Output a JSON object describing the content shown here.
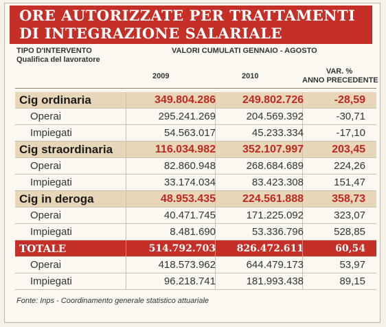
{
  "header": {
    "title_lines": [
      "ORE AUTORIZZATE PER TRATTAMENTI",
      "DI INTEGRAZIONE SALARIALE"
    ]
  },
  "table": {
    "col_header": {
      "type_label": "TIPO D'INTERVENTO",
      "qualifica_label": "Qualifica del lavoratore",
      "period": "VALORI CUMULATI GENNAIO - AGOSTO",
      "years": [
        "2009",
        "2010"
      ],
      "var_lines": [
        "VAR. %",
        "ANNO PRECEDENTE"
      ]
    },
    "groups": [
      {
        "label": "Cig ordinaria",
        "values": [
          "349.804.286",
          "249.802.726",
          "-28,59"
        ],
        "rows": [
          {
            "label": "Operai",
            "values": [
              "295.241.269",
              "204.569.392",
              "-30,71"
            ]
          },
          {
            "label": "Impiegati",
            "values": [
              "54.563.017",
              "45.233.334",
              "-17,10"
            ]
          }
        ]
      },
      {
        "label": "Cig straordinaria",
        "values": [
          "116.034.982",
          "352.107.997",
          "203,45"
        ],
        "rows": [
          {
            "label": "Operai",
            "values": [
              "82.860.948",
              "268.684.689",
              "224,26"
            ]
          },
          {
            "label": "Impiegati",
            "values": [
              "33.174.034",
              "83.423.308",
              "151,47"
            ]
          }
        ]
      },
      {
        "label": "Cig in deroga",
        "values": [
          "48.953.435",
          "224.561.888",
          "358,73"
        ],
        "rows": [
          {
            "label": "Operai",
            "values": [
              "40.471.745",
              "171.225.092",
              "323,07"
            ]
          },
          {
            "label": "Impiegati",
            "values": [
              "8.481.690",
              "53.336.796",
              "528,85"
            ]
          }
        ]
      }
    ],
    "total": {
      "label": "TOTALE",
      "values": [
        "514.792.703",
        "826.472.611",
        "60,54"
      ],
      "rows": [
        {
          "label": "Operai",
          "values": [
            "418.573.962",
            "644.479.173",
            "53,97"
          ]
        },
        {
          "label": "Impiegati",
          "values": [
            "96.218.741",
            "181.993.438",
            "89,15"
          ]
        }
      ]
    }
  },
  "footer": "Fonte: Inps - Coordinamento generale statistico attuariale"
}
